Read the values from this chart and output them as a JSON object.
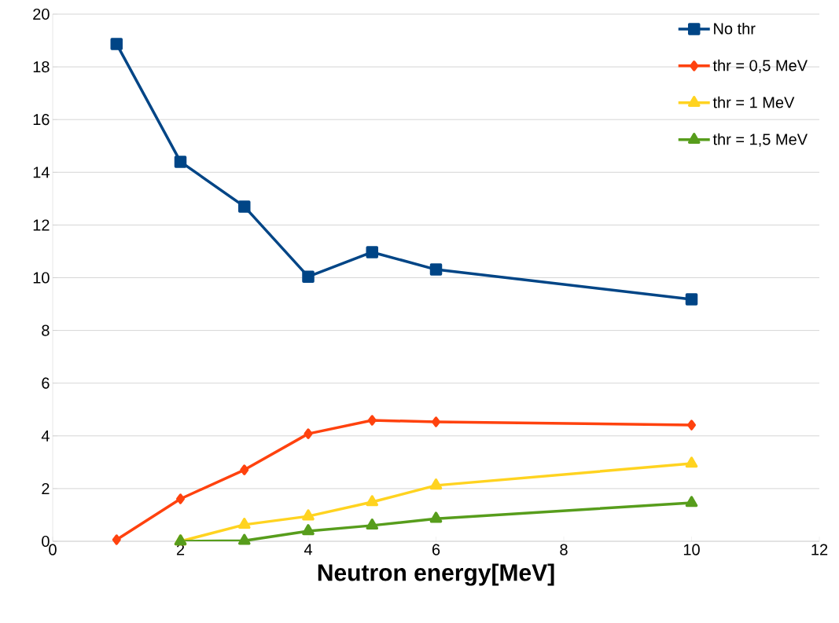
{
  "chart_data": {
    "type": "line",
    "xlabel": "Neutron energy[MeV]",
    "xlim": [
      0,
      12
    ],
    "xticks": [
      0,
      2,
      4,
      6,
      8,
      10,
      12
    ],
    "ylim": [
      0,
      20
    ],
    "yticks": [
      0,
      2,
      4,
      6,
      8,
      10,
      12,
      14,
      16,
      18,
      20
    ],
    "grid": "y",
    "legend": "top right",
    "line_style": "solid",
    "series": [
      {
        "name": "No thr",
        "color": "#004586",
        "marker": "square",
        "x": [
          1,
          2,
          3,
          4,
          5,
          6,
          10
        ],
        "values": [
          18.87,
          14.4,
          12.7,
          10.04,
          10.97,
          10.31,
          9.18
        ]
      },
      {
        "name": "thr = 0,5 MeV",
        "color": "#ff420e",
        "marker": "diamond",
        "x": [
          1,
          2,
          3,
          4,
          5,
          6,
          10
        ],
        "values": [
          0.06,
          1.61,
          2.71,
          4.08,
          4.59,
          4.53,
          4.41
        ]
      },
      {
        "name": "thr = 1 MeV",
        "color": "#ffd320",
        "marker": "triangle",
        "x": [
          2,
          3,
          4,
          5,
          6,
          10
        ],
        "values": [
          0,
          0.63,
          0.95,
          1.49,
          2.12,
          2.95
        ]
      },
      {
        "name": "thr = 1,5 MeV",
        "color": "#579d1c",
        "marker": "triangle",
        "x": [
          2,
          3,
          4,
          5,
          6,
          10
        ],
        "values": [
          0,
          0.02,
          0.39,
          0.6,
          0.86,
          1.46
        ]
      }
    ]
  }
}
